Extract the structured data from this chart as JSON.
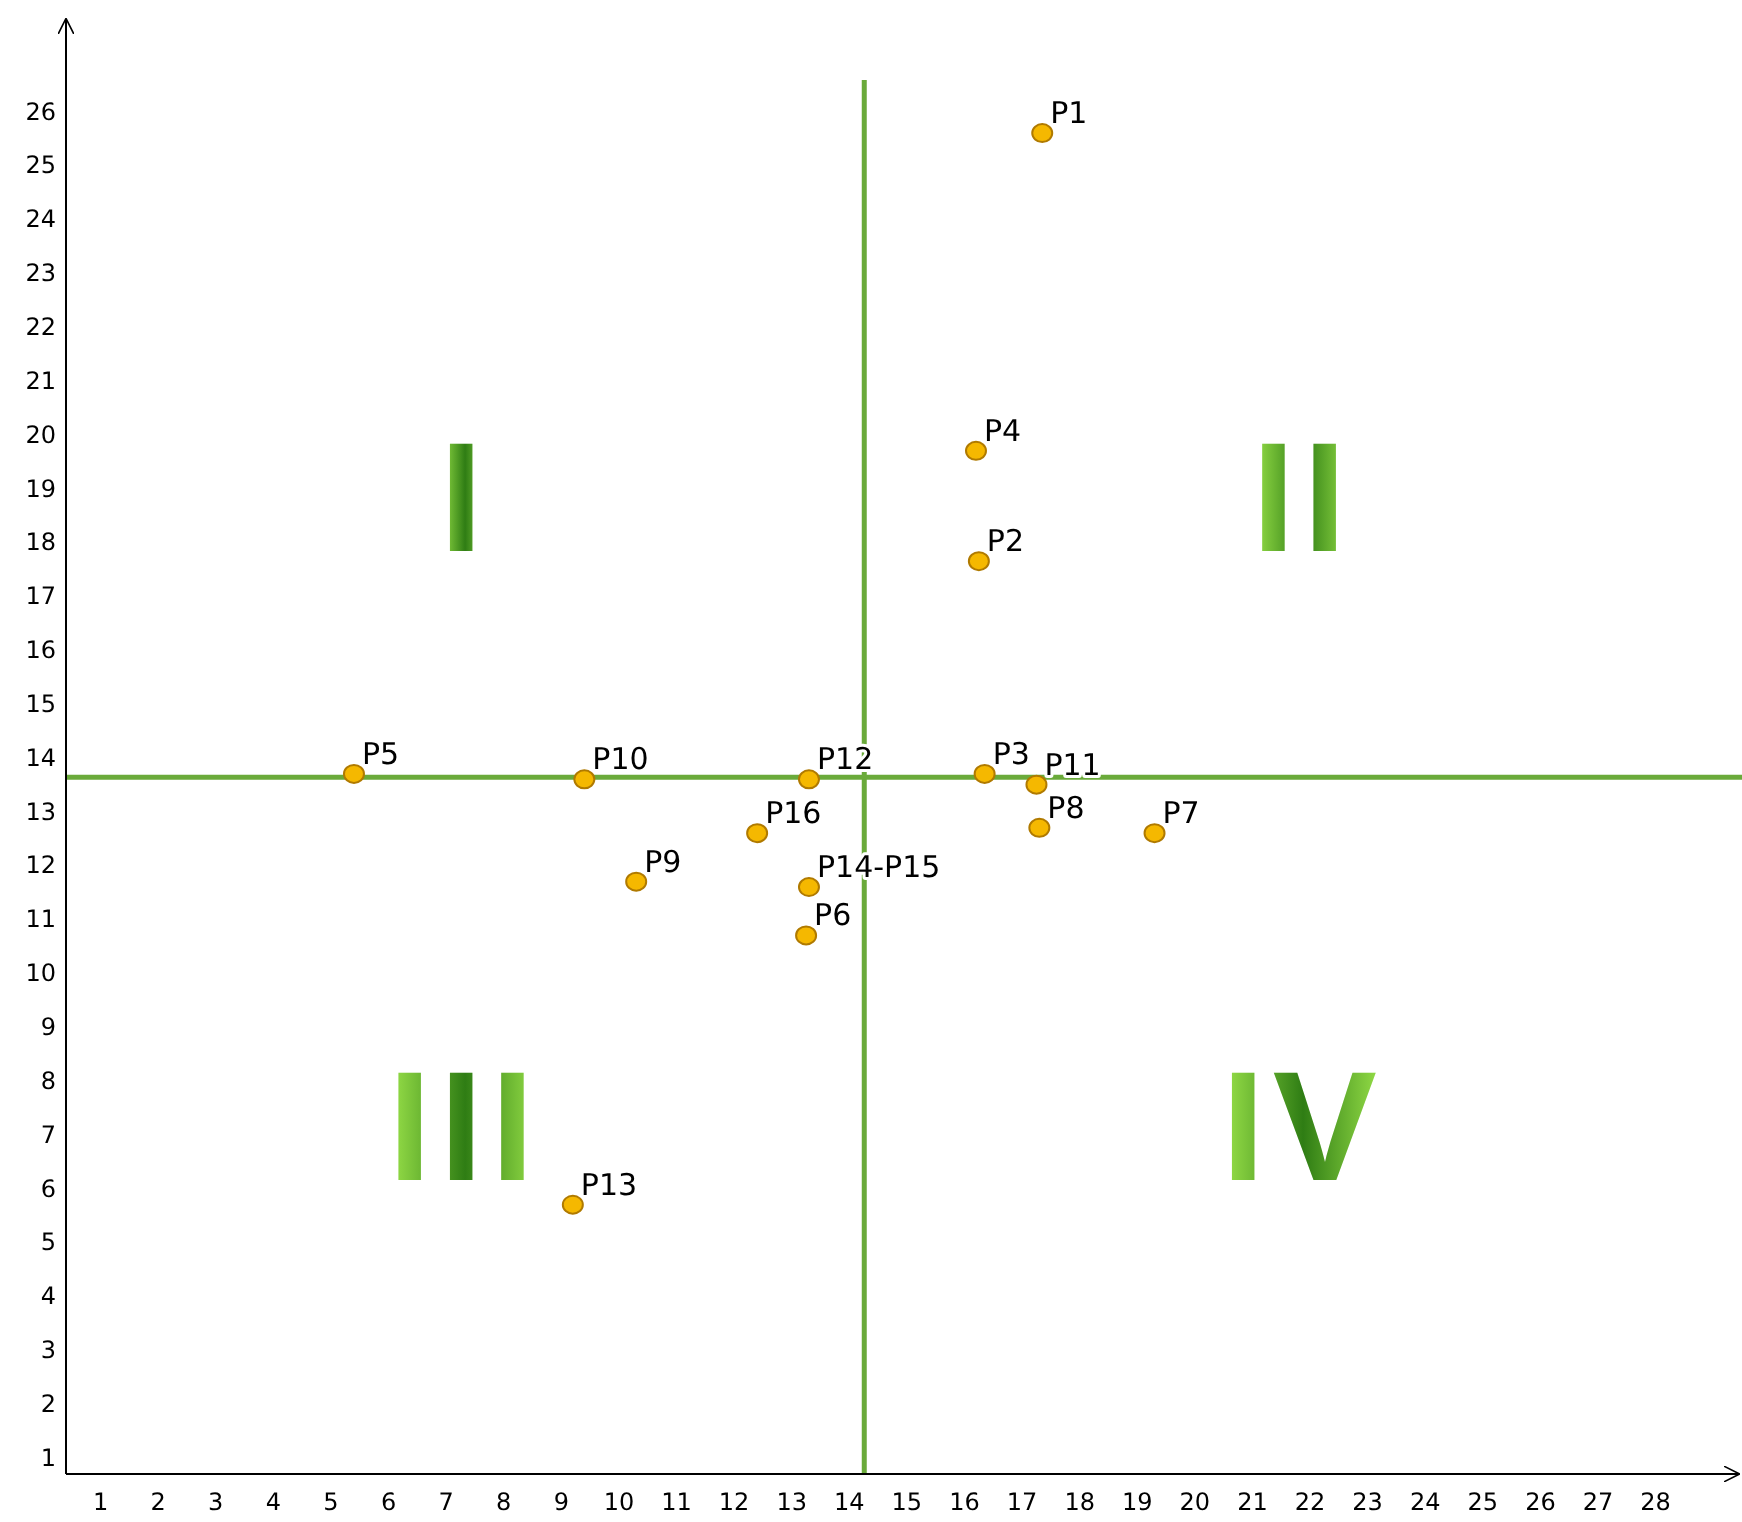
{
  "chart_data": {
    "type": "scatter",
    "xlim": [
      0.4,
      29.5
    ],
    "ylim": [
      0.7,
      27.7
    ],
    "xticks": [
      1,
      2,
      3,
      4,
      5,
      6,
      7,
      8,
      9,
      10,
      11,
      12,
      13,
      14,
      15,
      16,
      17,
      18,
      19,
      20,
      21,
      22,
      23,
      24,
      25,
      26,
      27,
      28
    ],
    "yticks": [
      1,
      2,
      3,
      4,
      5,
      6,
      7,
      8,
      9,
      10,
      11,
      12,
      13,
      14,
      15,
      16,
      17,
      18,
      19,
      20,
      21,
      22,
      23,
      24,
      25,
      26
    ],
    "grid": false,
    "marker": "circle",
    "series": [
      {
        "name": "P1",
        "color": "#f5b800",
        "x": [
          17.35
        ],
        "values": [
          25.6
        ]
      },
      {
        "name": "P2",
        "color": "#f5b800",
        "x": [
          16.25
        ],
        "values": [
          17.65
        ]
      },
      {
        "name": "P3",
        "color": "#f5b800",
        "x": [
          16.35
        ],
        "values": [
          13.7
        ]
      },
      {
        "name": "P4",
        "color": "#f5b800",
        "x": [
          16.2
        ],
        "values": [
          19.7
        ]
      },
      {
        "name": "P5",
        "color": "#f5b800",
        "x": [
          5.4
        ],
        "values": [
          13.7
        ]
      },
      {
        "name": "P6",
        "color": "#f5b800",
        "x": [
          13.25
        ],
        "values": [
          10.7
        ]
      },
      {
        "name": "P7",
        "color": "#f5b800",
        "x": [
          19.3
        ],
        "values": [
          12.6
        ]
      },
      {
        "name": "P8",
        "color": "#f5b800",
        "x": [
          17.3
        ],
        "values": [
          12.7
        ]
      },
      {
        "name": "P9",
        "color": "#f5b800",
        "x": [
          10.3
        ],
        "values": [
          11.7
        ]
      },
      {
        "name": "P10",
        "color": "#f5b800",
        "x": [
          9.4
        ],
        "values": [
          13.6
        ]
      },
      {
        "name": "P11",
        "color": "#f5b800",
        "x": [
          17.25
        ],
        "values": [
          13.5
        ]
      },
      {
        "name": "P12",
        "color": "#f5b800",
        "x": [
          13.3
        ],
        "values": [
          13.6
        ]
      },
      {
        "name": "P13",
        "color": "#f5b800",
        "x": [
          9.2
        ],
        "values": [
          5.7
        ]
      },
      {
        "name": "P14-P15",
        "color": "#f5b800",
        "x": [
          13.3
        ],
        "values": [
          11.6
        ]
      },
      {
        "name": "P16",
        "color": "#f5b800",
        "x": [
          12.4
        ],
        "values": [
          12.6
        ]
      }
    ],
    "ref_lines": [
      {
        "axis": "x",
        "value": 14.26,
        "color": "#6aaa3a"
      },
      {
        "axis": "y",
        "value": 13.64,
        "color": "#6aaa3a"
      }
    ],
    "annotations": [
      "I",
      "II",
      "III",
      "IV"
    ]
  }
}
